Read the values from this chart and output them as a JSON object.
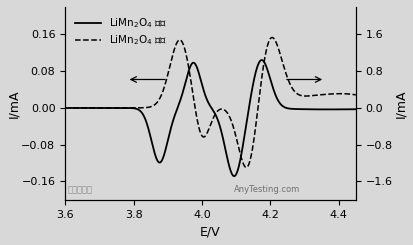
{
  "xlabel": "E/V",
  "ylabel_left": "I/mA",
  "ylabel_right": "I/mA",
  "xlim": [
    3.6,
    4.45
  ],
  "ylim_left": [
    -0.2,
    0.22
  ],
  "ylim_right": [
    -2.0,
    2.2
  ],
  "xticks": [
    3.6,
    3.8,
    4.0,
    4.2,
    4.4
  ],
  "yticks_left": [
    -0.16,
    -0.08,
    0.0,
    0.08,
    0.16
  ],
  "yticks_right": [
    -1.6,
    -0.8,
    0.0,
    0.8,
    1.6
  ],
  "legend_solid": "LiMn$_2$O$_4$ 粉体",
  "legend_dashed": "LiMn$_2$O$_4$ 薄膜",
  "solid_color": "#000000",
  "dashed_color": "#000000",
  "background": "#d8d8d8",
  "watermark": "AnyTesting.com"
}
